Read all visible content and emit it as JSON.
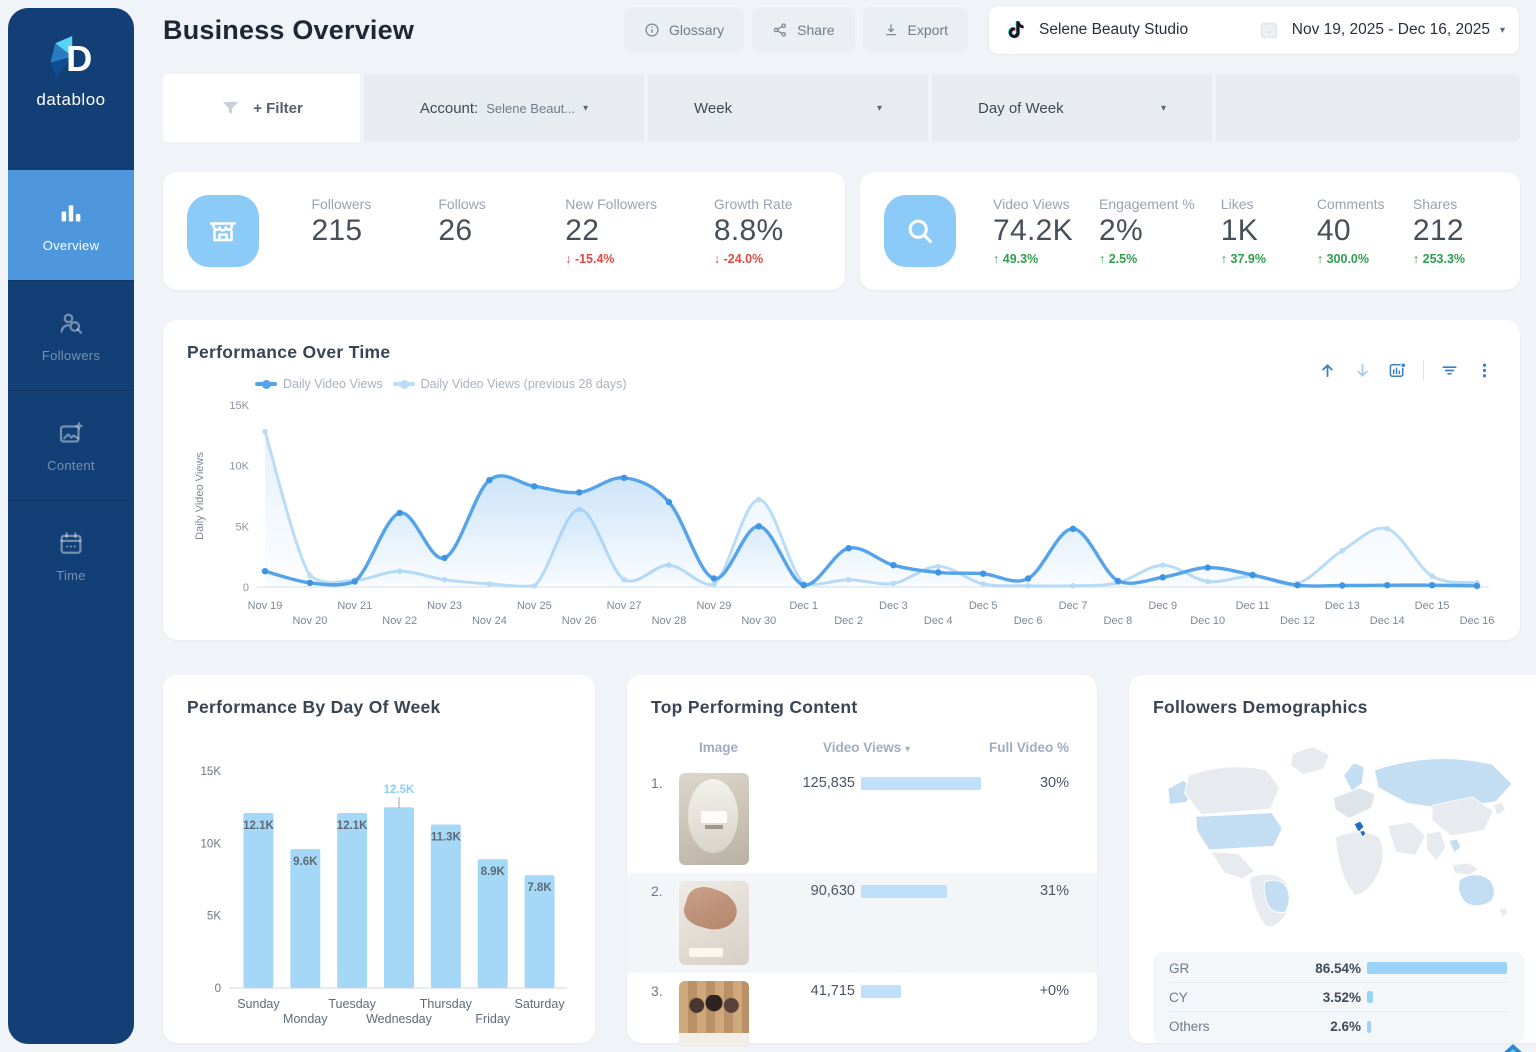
{
  "brand": {
    "name": "databloo"
  },
  "page": {
    "title": "Business Overview"
  },
  "header": {
    "buttons": [
      {
        "label": "Glossary",
        "icon": "info"
      },
      {
        "label": "Share",
        "icon": "share"
      },
      {
        "label": "Export",
        "icon": "download"
      }
    ],
    "account": {
      "platform_icon": "tiktok",
      "name": "Selene Beauty Studio"
    },
    "date_range": {
      "icon": "calendar",
      "value": "Nov 19, 2025 - Dec 16, 2025"
    }
  },
  "filter_bar": {
    "filter": {
      "icon": "funnel",
      "label": "+ Filter"
    },
    "dropdowns": [
      {
        "label": "Account:",
        "value": "Selene Beaut...",
        "spread": false
      },
      {
        "label": "Week",
        "value": "",
        "spread": true
      },
      {
        "label": "Day of Week",
        "value": "",
        "spread": true
      }
    ]
  },
  "sidebar": {
    "items": [
      {
        "label": "Overview",
        "icon": "nav-overview",
        "active": true
      },
      {
        "label": "Followers",
        "icon": "nav-followers",
        "active": false
      },
      {
        "label": "Content",
        "icon": "nav-content",
        "active": false
      },
      {
        "label": "Time",
        "icon": "nav-time",
        "active": false
      }
    ]
  },
  "kpi_cards": [
    {
      "icon": "storefront",
      "metrics": [
        {
          "label": "Followers",
          "value": "215",
          "delta": "",
          "dir": ""
        },
        {
          "label": "Follows",
          "value": "26",
          "delta": "",
          "dir": ""
        },
        {
          "label": "New Followers",
          "value": "22",
          "delta": "-15.4%",
          "dir": "down"
        },
        {
          "label": "Growth Rate",
          "value": "8.8%",
          "delta": "-24.0%",
          "dir": "down"
        }
      ]
    },
    {
      "icon": "search",
      "metrics": [
        {
          "label": "Video Views",
          "value": "74.2K",
          "delta": "49.3%",
          "dir": "up"
        },
        {
          "label": "Engagement %",
          "value": "2%",
          "delta": "2.5%",
          "dir": "up"
        },
        {
          "label": "Likes",
          "value": "1K",
          "delta": "37.9%",
          "dir": "up"
        },
        {
          "label": "Comments",
          "value": "40",
          "delta": "300.0%",
          "dir": "up"
        },
        {
          "label": "Shares",
          "value": "212",
          "delta": "253.3%",
          "dir": "up"
        }
      ]
    }
  ],
  "panels": {
    "performance": {
      "title": "Performance Over Time",
      "toolbar": [
        "arrow-up",
        "arrow-down",
        "chart",
        "filter",
        "more"
      ]
    },
    "day_of_week": {
      "title": "Performance By Day Of Week"
    },
    "top_content": {
      "title": "Top Performing Content",
      "headers": {
        "image": "Image",
        "views": "Video Views",
        "sort_icon": "caret-down",
        "full_video": "Full Video %"
      },
      "rows": [
        {
          "rank": "1.",
          "views": "125,835",
          "views_value": 125835,
          "full_video": "30%"
        },
        {
          "rank": "2.",
          "views": "90,630",
          "views_value": 90630,
          "full_video": "31%"
        },
        {
          "rank": "3.",
          "views": "41,715",
          "views_value": 41715,
          "full_video": "+0%"
        }
      ]
    },
    "demographics": {
      "title": "Followers Demographics",
      "rows": [
        {
          "label": "GR",
          "value": "86.54%",
          "pct": 86.54
        },
        {
          "label": "CY",
          "value": "3.52%",
          "pct": 3.52
        },
        {
          "label": "Others",
          "value": "2.6%",
          "pct": 2.6
        }
      ]
    }
  },
  "chart_data": [
    {
      "type": "line",
      "title": "Performance Over Time",
      "ylabel": "Daily Video Views",
      "ylim": [
        0,
        15000
      ],
      "grid": false,
      "legend_position": "top",
      "yticks": [
        {
          "v": 0,
          "label": "0"
        },
        {
          "v": 5000,
          "label": "5K"
        },
        {
          "v": 10000,
          "label": "10K"
        },
        {
          "v": 15000,
          "label": "15K"
        }
      ],
      "x": [
        "Nov 19",
        "Nov 20",
        "Nov 21",
        "Nov 22",
        "Nov 23",
        "Nov 24",
        "Nov 25",
        "Nov 26",
        "Nov 27",
        "Nov 28",
        "Nov 29",
        "Nov 30",
        "Dec 1",
        "Dec 2",
        "Dec 3",
        "Dec 4",
        "Dec 5",
        "Dec 6",
        "Dec 7",
        "Dec 8",
        "Dec 9",
        "Dec 10",
        "Dec 11",
        "Dec 12",
        "Dec 13",
        "Dec 14",
        "Dec 15",
        "Dec 16"
      ],
      "series": [
        {
          "name": "Daily Video Views",
          "color": "#55a3e9",
          "marker": "#3f93e3",
          "values": [
            1300,
            350,
            450,
            6100,
            2400,
            8800,
            8300,
            7800,
            9000,
            7000,
            700,
            5000,
            150,
            3200,
            1800,
            1200,
            1100,
            700,
            4800,
            500,
            800,
            1600,
            1000,
            150,
            120,
            150,
            150,
            100
          ]
        },
        {
          "name": "Daily Video Views (previous 28 days)",
          "color": "#b9dcf7",
          "marker": "#b9dcf7",
          "values": [
            12800,
            950,
            550,
            1300,
            600,
            250,
            80,
            6400,
            600,
            1800,
            200,
            7200,
            300,
            600,
            300,
            1700,
            250,
            100,
            100,
            350,
            1800,
            450,
            900,
            300,
            3000,
            4800,
            900,
            350
          ]
        }
      ]
    },
    {
      "type": "bar",
      "title": "Performance By Day Of Week",
      "categories": [
        "Sunday",
        "Monday",
        "Tuesday",
        "Wednesday",
        "Thursday",
        "Friday",
        "Saturday"
      ],
      "values": [
        12100,
        9600,
        12100,
        12500,
        11300,
        8900,
        7800
      ],
      "labels": [
        "12.1K",
        "9.6K",
        "12.1K",
        "12.5K",
        "11.3K",
        "8.9K",
        "7.8K"
      ],
      "highlight_index": 3,
      "bar_color": "#a5d8f7",
      "ylim": [
        0,
        15000
      ],
      "grid": false,
      "yticks": [
        {
          "v": 0,
          "label": "0"
        },
        {
          "v": 5000,
          "label": "5K"
        },
        {
          "v": 10000,
          "label": "10K"
        },
        {
          "v": 15000,
          "label": "15K"
        }
      ]
    }
  ],
  "colors": {
    "accent": "#4e97dc",
    "navy": "#123f76",
    "green": "#2f9e4f",
    "red": "#e14b43",
    "bar": "#a5d8f7",
    "kpi_tile": "#8ccaf8"
  }
}
